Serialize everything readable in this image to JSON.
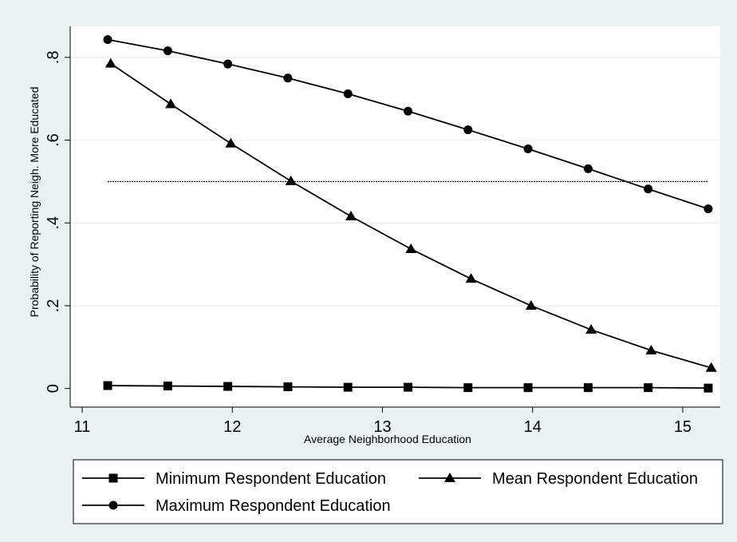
{
  "chart_data": {
    "type": "line",
    "title": "",
    "xlabel": "Average Neighborhood Education",
    "ylabel": "Probability of Reporting Neigh. More Educated",
    "xlim": [
      11,
      15.25
    ],
    "ylim": [
      0,
      0.85
    ],
    "x_ticks": [
      11,
      12,
      13,
      14,
      15
    ],
    "x_tick_labels": [
      "11",
      "12",
      "13",
      "14",
      "15"
    ],
    "y_ticks": [
      0,
      0.2,
      0.4,
      0.6,
      0.8
    ],
    "y_tick_labels": [
      "0",
      ".2",
      ".4",
      ".6",
      ".8"
    ],
    "grid": "horizontal",
    "reference_line": {
      "y": 0.5,
      "x_range": [
        11.17,
        15.17
      ],
      "style": "dotted"
    },
    "legend_position": "bottom",
    "series": [
      {
        "name": "Minimum Respondent Education",
        "marker": "square",
        "x": [
          11.17,
          11.57,
          11.97,
          12.37,
          12.77,
          13.17,
          13.57,
          13.97,
          14.37,
          14.77,
          15.17
        ],
        "y": [
          0.007,
          0.006,
          0.005,
          0.004,
          0.003,
          0.003,
          0.002,
          0.002,
          0.002,
          0.002,
          0.001
        ]
      },
      {
        "name": "Mean Respondent Education",
        "marker": "triangle",
        "x": [
          11.19,
          11.59,
          11.99,
          12.39,
          12.79,
          13.19,
          13.59,
          13.99,
          14.39,
          14.79,
          15.19
        ],
        "y": [
          0.785,
          0.687,
          0.592,
          0.501,
          0.416,
          0.337,
          0.265,
          0.2,
          0.142,
          0.092,
          0.05
        ]
      },
      {
        "name": "Maximum Respondent Education",
        "marker": "circle",
        "x": [
          11.17,
          11.57,
          11.97,
          12.37,
          12.77,
          13.17,
          13.57,
          13.97,
          14.37,
          14.77,
          15.17
        ],
        "y": [
          0.843,
          0.816,
          0.784,
          0.75,
          0.712,
          0.67,
          0.625,
          0.579,
          0.531,
          0.482,
          0.434
        ]
      }
    ]
  },
  "colors": {
    "background": "#eaf2f3",
    "plot_background": "#ffffff",
    "gridline": "#e6eef0",
    "ink": "#000000"
  }
}
